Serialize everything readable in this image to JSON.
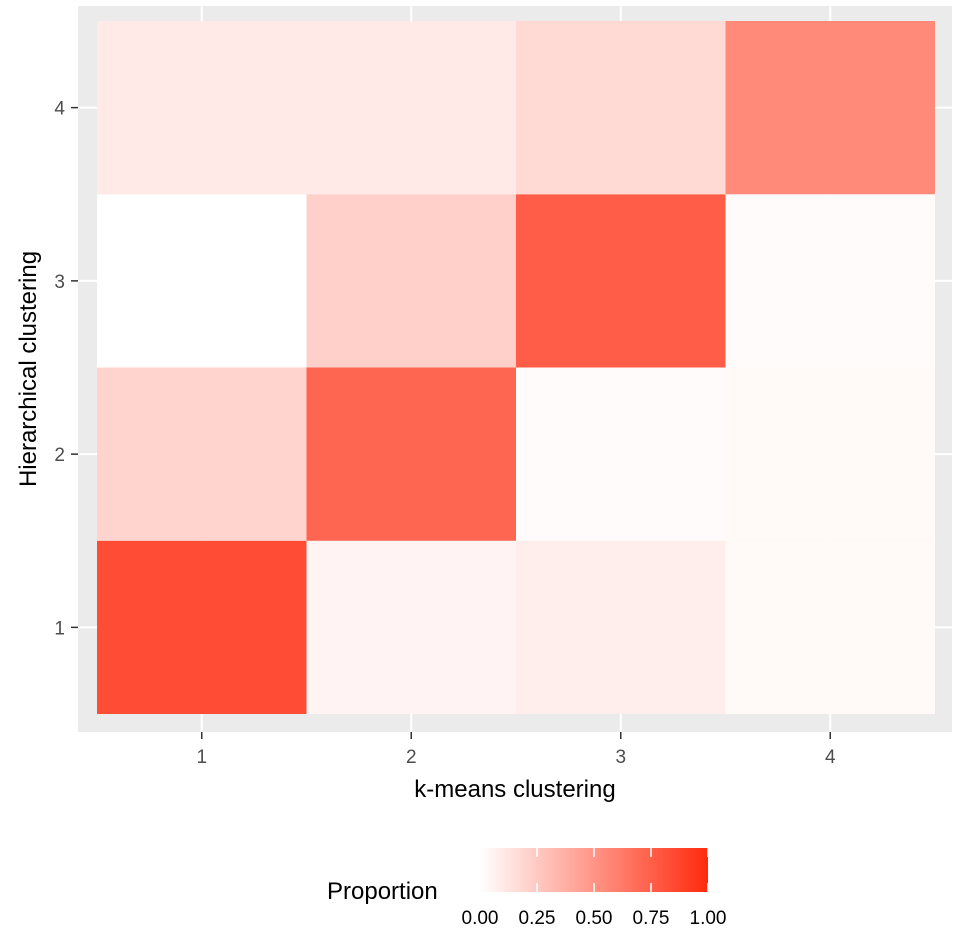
{
  "chart_data": {
    "type": "heatmap",
    "title": "",
    "xlabel": "k-means clustering",
    "ylabel": "Hierarchical clustering",
    "x_categories": [
      "1",
      "2",
      "3",
      "4"
    ],
    "y_categories": [
      "1",
      "2",
      "3",
      "4"
    ],
    "values": [
      [
        0.84,
        0.05,
        0.08,
        0.03
      ],
      [
        0.2,
        0.72,
        0.02,
        0.03
      ],
      [
        0.0,
        0.22,
        0.76,
        0.02
      ],
      [
        0.1,
        0.1,
        0.18,
        0.55
      ]
    ],
    "legend": {
      "title": "Proportion",
      "ticks": [
        "0.00",
        "0.25",
        "0.50",
        "0.75",
        "1.00"
      ],
      "tick_values": [
        0,
        0.25,
        0.5,
        0.75,
        1
      ],
      "range": [
        0,
        1
      ],
      "low_color": "#ffffff",
      "high_color": "#ff2a0d",
      "position": "bottom"
    },
    "grid": true,
    "panel_background": "#ebebeb"
  }
}
